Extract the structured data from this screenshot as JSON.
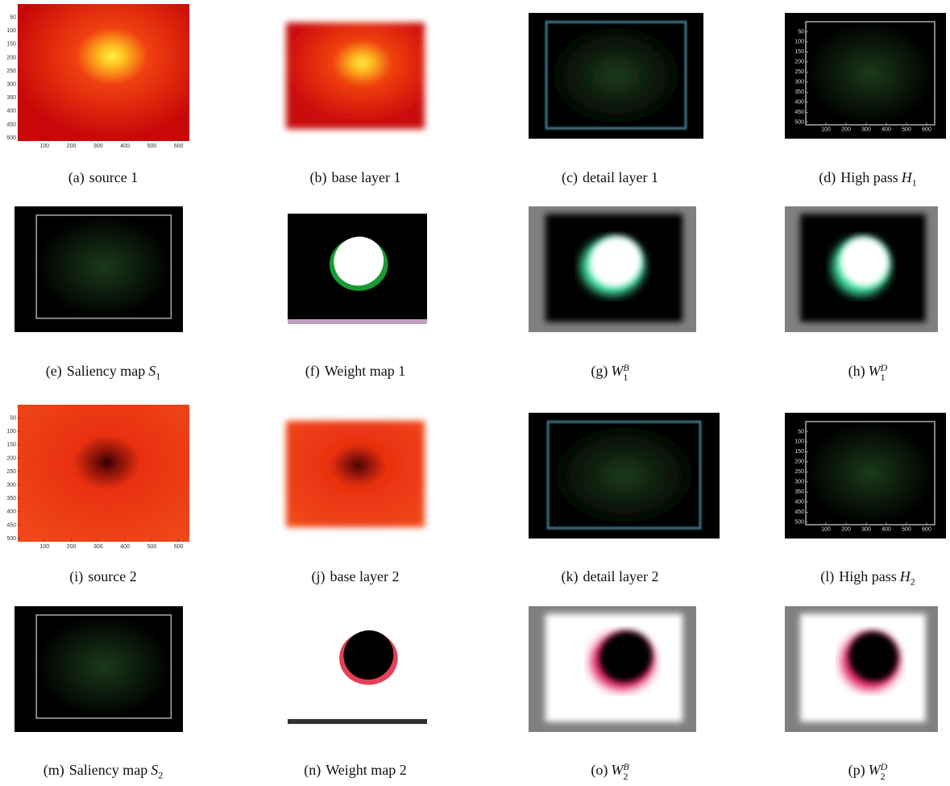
{
  "panels": [
    {
      "label": "(a)",
      "text": "source 1",
      "xlim": [
        0,
        640
      ],
      "ylim": [
        0,
        512
      ],
      "xticks": [
        100,
        200,
        300,
        400,
        500,
        600
      ],
      "yticks": [
        50,
        100,
        150,
        200,
        250,
        300,
        350,
        400,
        450,
        500
      ]
    },
    {
      "label": "(b)",
      "text": "base layer 1"
    },
    {
      "label": "(c)",
      "text": "detail layer 1"
    },
    {
      "label": "(d)",
      "text": "High pass",
      "symbol": "H",
      "sub": "1",
      "xlim": [
        0,
        640
      ],
      "ylim": [
        0,
        512
      ],
      "xticks": [
        100,
        200,
        300,
        400,
        500,
        600
      ],
      "yticks": [
        50,
        100,
        150,
        200,
        250,
        300,
        350,
        400,
        450,
        500
      ]
    },
    {
      "label": "(e)",
      "text": "Saliency map",
      "symbol": "S",
      "sub": "1"
    },
    {
      "label": "(f)",
      "text": "Weight map 1"
    },
    {
      "label": "(g)",
      "symbol": "W",
      "sub": "1",
      "sup": "B"
    },
    {
      "label": "(h)",
      "symbol": "W",
      "sub": "1",
      "sup": "D"
    },
    {
      "label": "(i)",
      "text": "source 2",
      "xlim": [
        0,
        640
      ],
      "ylim": [
        0,
        512
      ],
      "xticks": [
        100,
        200,
        300,
        400,
        500,
        600
      ],
      "yticks": [
        50,
        100,
        150,
        200,
        250,
        300,
        350,
        400,
        450,
        500
      ]
    },
    {
      "label": "(j)",
      "text": "base layer 2"
    },
    {
      "label": "(k)",
      "text": "detail layer 2"
    },
    {
      "label": "(l)",
      "text": "High pass",
      "symbol": "H",
      "sub": "2",
      "xlim": [
        0,
        640
      ],
      "ylim": [
        0,
        512
      ],
      "xticks": [
        100,
        200,
        300,
        400,
        500,
        600
      ],
      "yticks": [
        50,
        100,
        150,
        200,
        250,
        300,
        350,
        400,
        450,
        500
      ]
    },
    {
      "label": "(m)",
      "text": "Saliency map",
      "symbol": "S",
      "sub": "2"
    },
    {
      "label": "(n)",
      "text": "Weight map 2"
    },
    {
      "label": "(o)",
      "symbol": "W",
      "sub": "2",
      "sup": "B"
    },
    {
      "label": "(p)",
      "symbol": "W",
      "sub": "2",
      "sup": "D"
    }
  ]
}
